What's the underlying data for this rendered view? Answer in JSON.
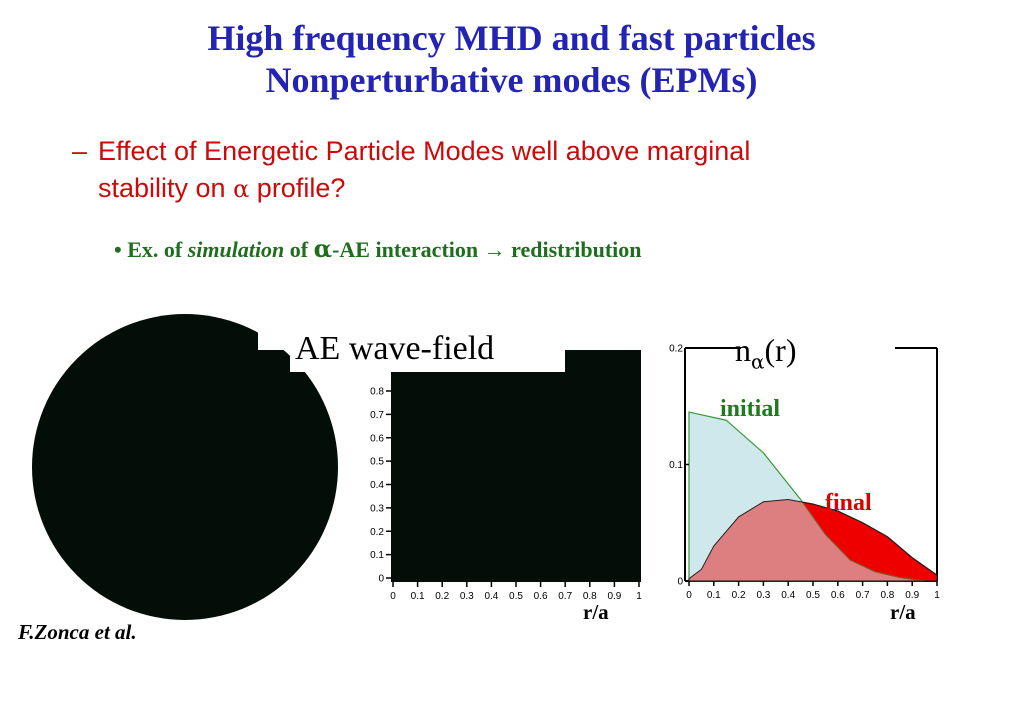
{
  "title": {
    "line1": "High frequency MHD and fast particles",
    "line2": "Nonperturbative modes (EPMs)"
  },
  "subtitle": {
    "dash": "–",
    "line1": "Effect of Energetic Particle Modes well above marginal",
    "line2_pre": "stability on ",
    "alpha": "α",
    "line2_post": " profile?"
  },
  "bullet": {
    "marker": "•",
    "pre": "Ex. of ",
    "italic": "simulation",
    "mid1": " of ",
    "alpha": "α",
    "mid2": "-AE interaction ",
    "arrow": "→",
    "post": " redistribution"
  },
  "figures": {
    "wave_field_label": "AE wave-field",
    "density_label_pre": "n",
    "density_label_sub": "α",
    "density_label_post": "(r)",
    "initial_label": "initial",
    "final_label": "final",
    "xlabel_left": "r/a",
    "xlabel_right": "r/a",
    "credit": "F.Zonca et al.",
    "colors": {
      "initial": "#cfe8ec",
      "final": "#ee0000",
      "dark": "#040e08"
    }
  },
  "chart_data": [
    {
      "type": "heatmap",
      "yticks": [
        "0",
        "0.1",
        "0.2",
        "0.3",
        "0.4",
        "0.5",
        "0.6",
        "0.7",
        "0.8"
      ],
      "xticks": [
        "0",
        "0.1",
        "0.2",
        "0.3",
        "0.4",
        "0.5",
        "0.6",
        "0.7",
        "0.8",
        "0.9",
        "1"
      ],
      "xlabel": "r/a"
    },
    {
      "type": "area",
      "xticks": [
        "0",
        "0.1",
        "0.2",
        "0.3",
        "0.4",
        "0.5",
        "0.6",
        "0.7",
        "0.8",
        "0.9",
        "1"
      ],
      "yticks": [
        "0",
        "0.1",
        "0.2"
      ],
      "xlim": [
        0,
        1
      ],
      "ylim": [
        0,
        0.2
      ],
      "xlabel": "r/a",
      "series": [
        {
          "name": "initial",
          "x": [
            0,
            0.15,
            0.3,
            0.45,
            0.55,
            0.65,
            0.75,
            0.85,
            0.95
          ],
          "values": [
            0.145,
            0.138,
            0.11,
            0.07,
            0.04,
            0.018,
            0.008,
            0.003,
            0.0
          ]
        },
        {
          "name": "final",
          "x": [
            0,
            0.05,
            0.1,
            0.2,
            0.3,
            0.4,
            0.5,
            0.6,
            0.7,
            0.8,
            0.9,
            1.0
          ],
          "values": [
            0.002,
            0.01,
            0.03,
            0.055,
            0.068,
            0.07,
            0.066,
            0.06,
            0.05,
            0.038,
            0.02,
            0.005
          ]
        }
      ]
    }
  ]
}
